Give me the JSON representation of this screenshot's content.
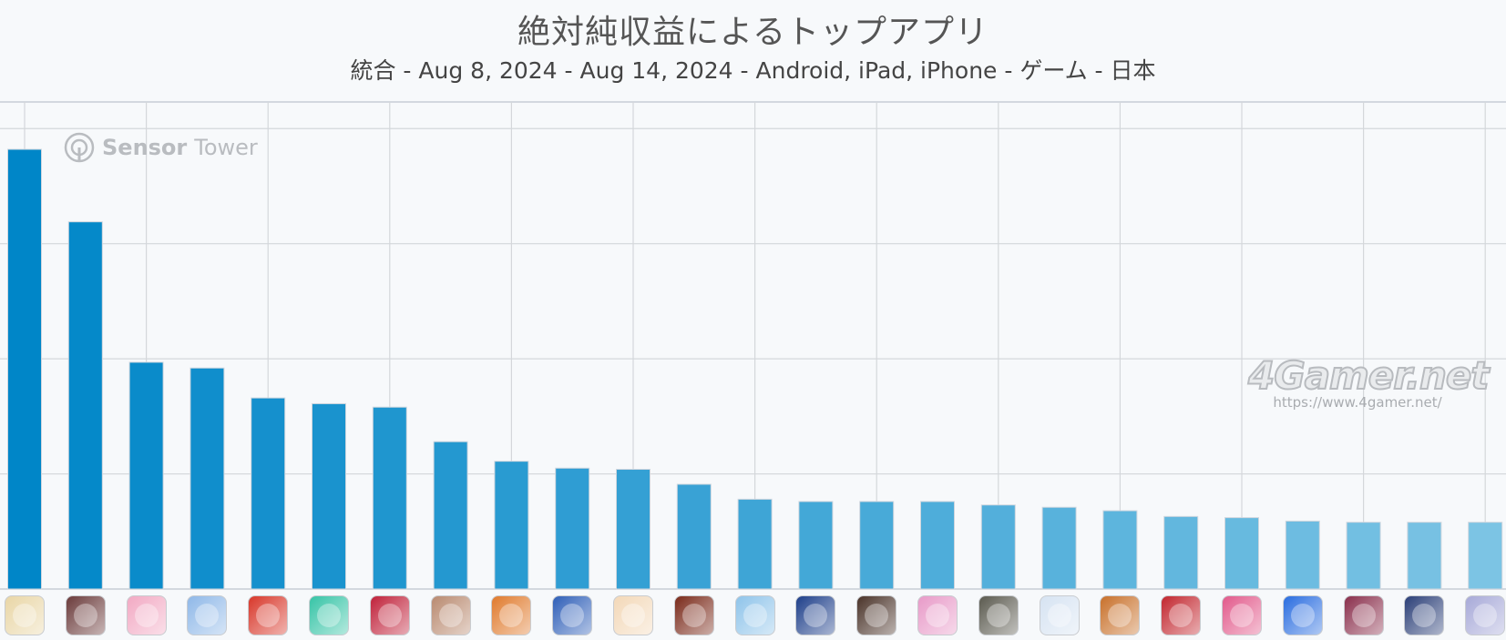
{
  "header": {
    "title": "絶対純収益によるトップアプリ",
    "subtitle": "統合 - Aug 8, 2024 - Aug 14, 2024 - Android, iPad, iPhone - ゲーム - 日本"
  },
  "watermarks": {
    "sensor_bold": "Sensor",
    "sensor_light": "Tower",
    "gamer": "4Gamer.net",
    "gamer_url": "https://www.4gamer.net/"
  },
  "chart_data": {
    "type": "bar",
    "title": "絶対純収益によるトップアプリ",
    "subtitle": "統合 - Aug 8, 2024 - Aug 14, 2024 - Android, iPad, iPhone - ゲーム - 日本",
    "xlabel": "",
    "ylabel": "",
    "ylim": [
      0,
      4
    ],
    "grid": true,
    "note": "y-axis has no printed tick labels; values estimated as gridline units",
    "values": [
      3.82,
      3.19,
      1.97,
      1.92,
      1.66,
      1.61,
      1.58,
      1.28,
      1.11,
      1.05,
      1.04,
      0.91,
      0.78,
      0.76,
      0.76,
      0.76,
      0.73,
      0.71,
      0.68,
      0.63,
      0.62,
      0.59,
      0.58,
      0.58,
      0.58
    ]
  },
  "app_icons": [
    {
      "icon": "app-icon-1",
      "color": "#e9d6a6"
    },
    {
      "icon": "app-icon-2",
      "color": "#6b3b3b"
    },
    {
      "icon": "app-icon-3",
      "color": "#f2a9c3"
    },
    {
      "icon": "app-icon-4",
      "color": "#8fb8e8"
    },
    {
      "icon": "app-icon-5",
      "color": "#d8372a"
    },
    {
      "icon": "app-icon-6",
      "color": "#36c4a6"
    },
    {
      "icon": "app-icon-7",
      "color": "#c0213a"
    },
    {
      "icon": "app-icon-8",
      "color": "#b98a70"
    },
    {
      "icon": "app-icon-9",
      "color": "#e07a2d"
    },
    {
      "icon": "app-icon-10",
      "color": "#2f5fb8"
    },
    {
      "icon": "app-icon-11",
      "color": "#f3d8b8"
    },
    {
      "icon": "app-icon-12",
      "color": "#7a2a1a"
    },
    {
      "icon": "app-icon-13",
      "color": "#8fc4ea"
    },
    {
      "icon": "app-icon-14",
      "color": "#1e3f8a"
    },
    {
      "icon": "app-icon-15",
      "color": "#4a3329"
    },
    {
      "icon": "app-icon-16",
      "color": "#e89ac8"
    },
    {
      "icon": "app-icon-17",
      "color": "#5b5a4f"
    },
    {
      "icon": "app-icon-18",
      "color": "#d6e3f2"
    },
    {
      "icon": "app-icon-19",
      "color": "#c8702a"
    },
    {
      "icon": "app-icon-20",
      "color": "#c2262e"
    },
    {
      "icon": "app-icon-21",
      "color": "#e25a8b"
    },
    {
      "icon": "app-icon-22",
      "color": "#2a6de0"
    },
    {
      "icon": "app-icon-23",
      "color": "#8a2f4c"
    },
    {
      "icon": "app-icon-24",
      "color": "#2b3f78"
    },
    {
      "icon": "app-icon-25",
      "color": "#a7a9d8"
    }
  ]
}
